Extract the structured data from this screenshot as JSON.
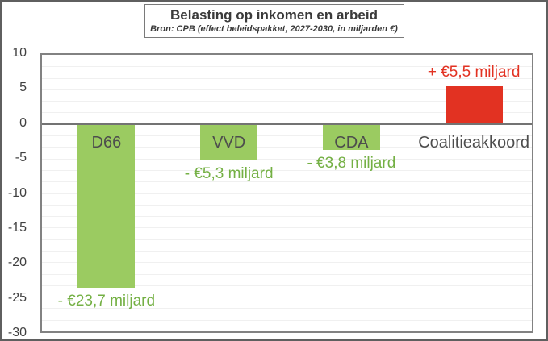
{
  "page": {
    "title": "Belasting op inkomen en arbeid",
    "subtitle": "Bron: CPB (effect beleidspakket, 2027-2030, in miljarden €)"
  },
  "colors": {
    "bar_negative": "#9bcb61",
    "bar_positive": "#e23222",
    "value_label_negative": "#74b044",
    "value_label_positive": "#e23222",
    "category_label": "#4d4d4d",
    "axis_text": "#404040",
    "gridline": "#f0f0f0",
    "zero_line": "#737373",
    "plot_border": "#828282"
  },
  "chart_data": {
    "type": "bar",
    "title": "Belasting op inkomen en arbeid",
    "subtitle": "Bron: CPB (effect beleidspakket, 2027-2030, in miljarden €)",
    "categories": [
      "D66",
      "VVD",
      "CDA",
      "Coalitieakkoord"
    ],
    "values": [
      -23.7,
      -5.3,
      -3.8,
      5.5
    ],
    "value_labels": [
      "- €23,7 miljard",
      "- €5,3 miljard",
      "- €3,8 miljard",
      "+ €5,5 miljard"
    ],
    "unit": "miljarden €",
    "ylim": [
      -30,
      10
    ],
    "yticks": [
      10,
      5,
      0,
      -5,
      -10,
      -15,
      -20,
      -25,
      -30
    ],
    "grid": true,
    "legend": false
  }
}
